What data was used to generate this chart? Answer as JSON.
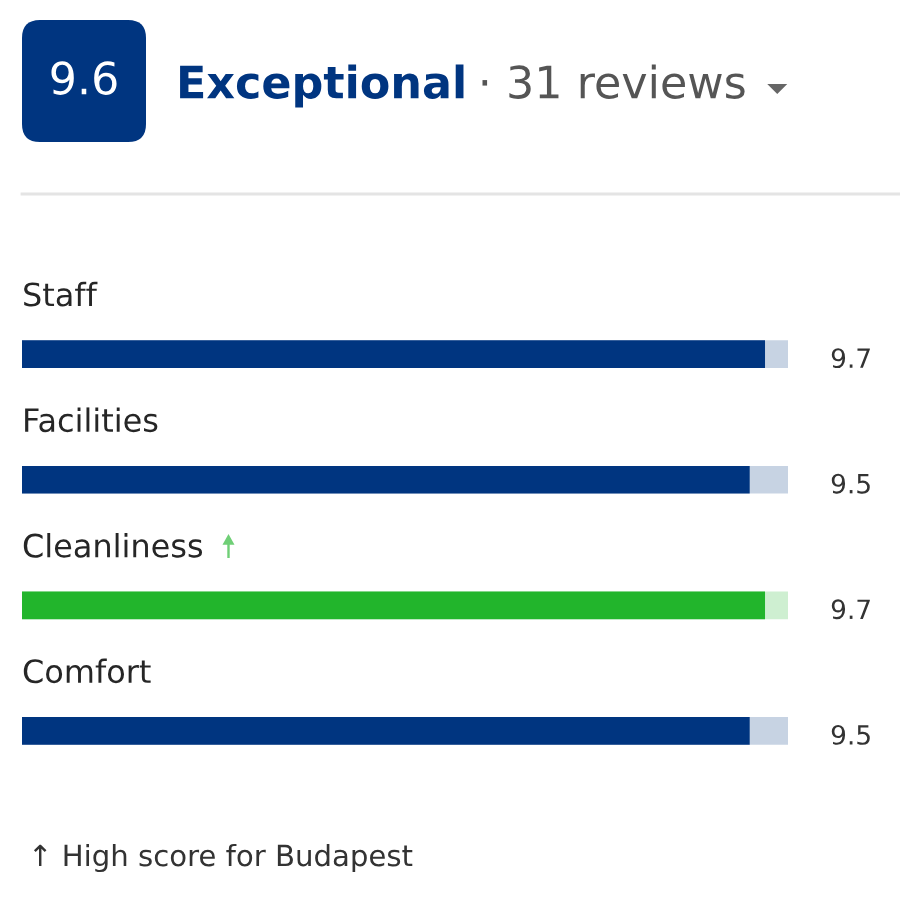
{
  "chart_data": {
    "type": "bar",
    "orientation": "horizontal",
    "title": "Exceptional",
    "subtitle": "· 31 reviews",
    "categories": [
      "Staff",
      "Facilities",
      "Cleanliness",
      "Comfort"
    ],
    "values": [
      9.7,
      9.5,
      9.7,
      9.5
    ],
    "colors": [
      "#003580",
      "#003580",
      "#22b52c",
      "#003580"
    ],
    "xlim": [
      0,
      10
    ],
    "tick_labels": false,
    "data_labels": true,
    "annotations": [
      "9.6",
      "↑ High score for Budapest"
    ]
  }
}
